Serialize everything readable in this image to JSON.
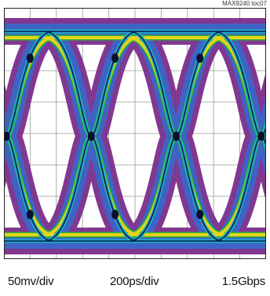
{
  "figure_tag": "MAX9240 toc07",
  "chart_data": {
    "type": "eye-diagram",
    "vertical_scale": "50mv/div",
    "horizontal_scale": "200ps/div",
    "data_rate": "1.5Gbps",
    "grid": true,
    "grid_divisions": {
      "horizontal": 10,
      "vertical": 8
    },
    "eye_openings": 3,
    "crossing_points": 4
  },
  "colors": {
    "outer_band": "#7a2d8a",
    "mid_band": "#3f63c4",
    "inner_line_green": "#2fb52a",
    "inner_line_yellow": "#e8d21e",
    "core_cyan": "#1ab0c8",
    "grid": "#9a9a9a",
    "frame": "#222222"
  }
}
